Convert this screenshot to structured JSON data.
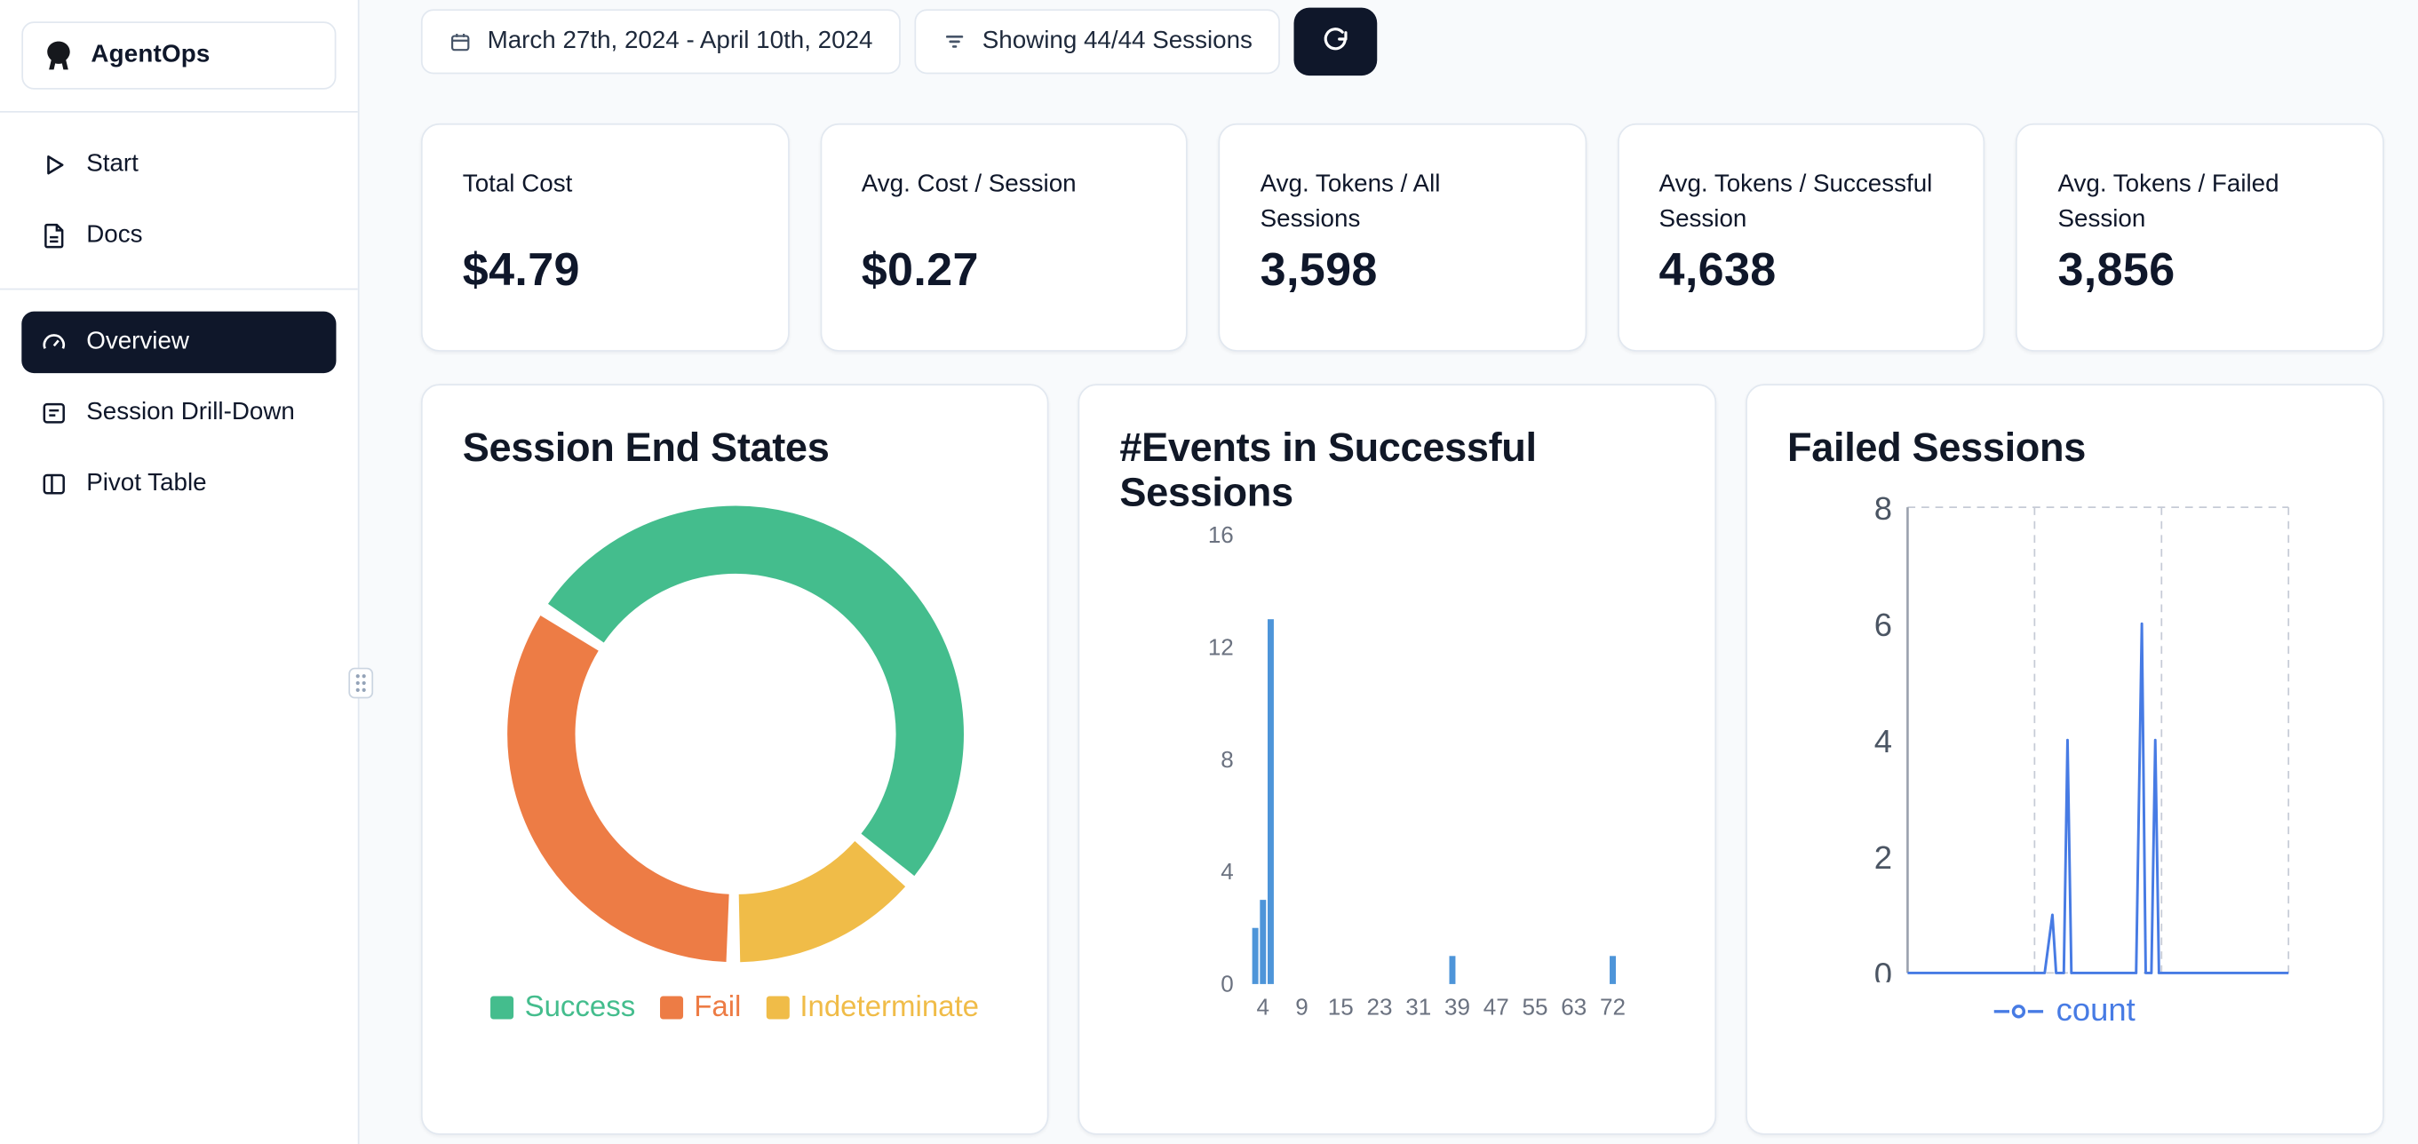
{
  "app": {
    "title": "AgentOps"
  },
  "colors": {
    "sidebar_active_bg": "#0f172a",
    "background": "#f8fafc",
    "card_border": "#e2e8f0"
  },
  "sidebar": {
    "items": [
      {
        "label": "Start",
        "icon": "play-icon"
      },
      {
        "label": "Docs",
        "icon": "document-icon"
      },
      {
        "label": "Overview",
        "icon": "gauge-icon",
        "active": true
      },
      {
        "label": "Session Drill-Down",
        "icon": "list-card-icon"
      },
      {
        "label": "Pivot Table",
        "icon": "table-columns-icon"
      }
    ]
  },
  "toolbar": {
    "date_range": "March 27th, 2024 - April 10th, 2024",
    "sessions_filter": "Showing 44/44 Sessions",
    "refresh_icon": "refresh-icon"
  },
  "stats": [
    {
      "label": "Total Cost",
      "value": "$4.79"
    },
    {
      "label": "Avg. Cost / Session",
      "value": "$0.27"
    },
    {
      "label": "Avg. Tokens / All Sessions",
      "value": "3,598"
    },
    {
      "label": "Avg. Tokens / Successful Session",
      "value": "4,638"
    },
    {
      "label": "Avg. Tokens / Failed Session",
      "value": "3,856"
    }
  ],
  "chart_data": [
    {
      "type": "pie",
      "title": "Session End States",
      "donut": true,
      "start_angle": -57,
      "legend_position": "bottom",
      "segments": [
        {
          "label": "Success",
          "percent": 52,
          "color": "#44bd8d"
        },
        {
          "label": "Fail",
          "percent": 34,
          "color": "#ed7c45"
        },
        {
          "label": "Indeterminate",
          "percent": 14,
          "color": "#f0bc48"
        }
      ],
      "clockwise_order": [
        "Success",
        "Indeterminate",
        "Fail"
      ]
    },
    {
      "type": "bar",
      "title": "#Events in Successful Sessions",
      "color": "#4e95d9",
      "ylim": [
        0,
        16
      ],
      "yticks": [
        0,
        4,
        8,
        12,
        16
      ],
      "xticks": [
        4,
        9,
        15,
        23,
        31,
        39,
        47,
        55,
        63,
        72
      ],
      "bars": [
        {
          "x": 3,
          "count": 2
        },
        {
          "x": 4,
          "count": 3
        },
        {
          "x": 5,
          "count": 13
        },
        {
          "x": 38,
          "count": 1
        },
        {
          "x": 72,
          "count": 1
        }
      ]
    },
    {
      "type": "line",
      "title": "Failed Sessions",
      "grid": "dashed",
      "ylim": [
        0,
        8
      ],
      "yticks": [
        0,
        2,
        4,
        6,
        8
      ],
      "series": [
        {
          "name": "count",
          "color": "#477be4"
        }
      ],
      "points": [
        [
          0,
          0
        ],
        [
          36,
          0
        ],
        [
          38,
          1
        ],
        [
          39,
          0
        ],
        [
          41,
          0
        ],
        [
          42,
          4
        ],
        [
          43,
          0
        ],
        [
          60,
          0
        ],
        [
          61.5,
          6
        ],
        [
          62.5,
          0
        ],
        [
          64,
          0
        ],
        [
          65,
          4
        ],
        [
          66,
          0
        ],
        [
          100,
          0
        ]
      ]
    }
  ]
}
